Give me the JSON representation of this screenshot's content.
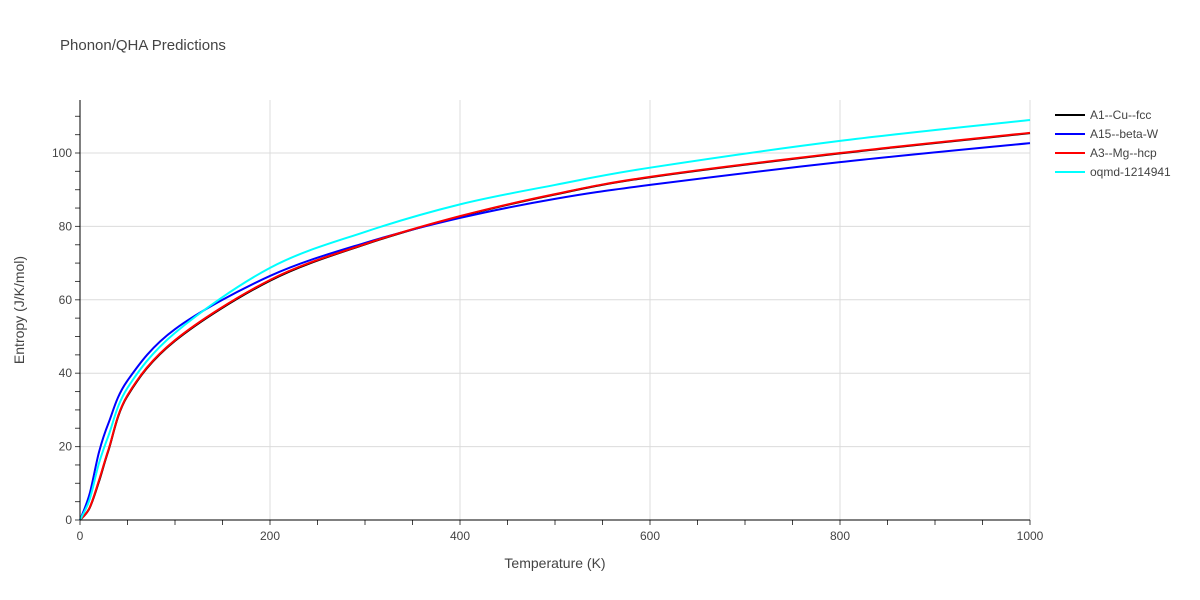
{
  "chart_data": {
    "type": "line",
    "title": "Phonon/QHA Predictions",
    "xlabel": "Temperature (K)",
    "ylabel": "Entropy (J/K/mol)",
    "xlim": [
      0,
      1000
    ],
    "ylim": [
      0,
      114.5
    ],
    "xticks": [
      0,
      200,
      400,
      600,
      800,
      1000
    ],
    "yticks": [
      0,
      20,
      40,
      60,
      80,
      100
    ],
    "grid": true,
    "legend_position": "top-right",
    "x": [
      0,
      10,
      20,
      30,
      50,
      100,
      200,
      300,
      400,
      500,
      600,
      800,
      1000
    ],
    "series": [
      {
        "name": "A1--Cu--fcc",
        "color": "#000000",
        "values": [
          0,
          3.2,
          10.5,
          19,
          33.8,
          48.8,
          65.2,
          75.1,
          82.7,
          88.7,
          93.4,
          99.9,
          105.4
        ]
      },
      {
        "name": "A15--beta-W",
        "color": "#0000ff",
        "values": [
          0,
          7,
          18.5,
          26.4,
          38,
          52,
          66.5,
          75.5,
          82.3,
          87.5,
          91.3,
          97.5,
          102.7
        ]
      },
      {
        "name": "A3--Mg--hcp",
        "color": "#ff0000",
        "values": [
          0,
          3.3,
          10.8,
          19.2,
          34,
          49,
          65.4,
          75.2,
          82.8,
          88.8,
          93.5,
          100,
          105.5
        ]
      },
      {
        "name": "oqmd-1214941",
        "color": "#00ffff",
        "values": [
          0,
          5.5,
          15.5,
          23,
          36,
          51,
          68.7,
          78.5,
          86,
          91.3,
          96,
          103.3,
          109
        ]
      }
    ]
  }
}
